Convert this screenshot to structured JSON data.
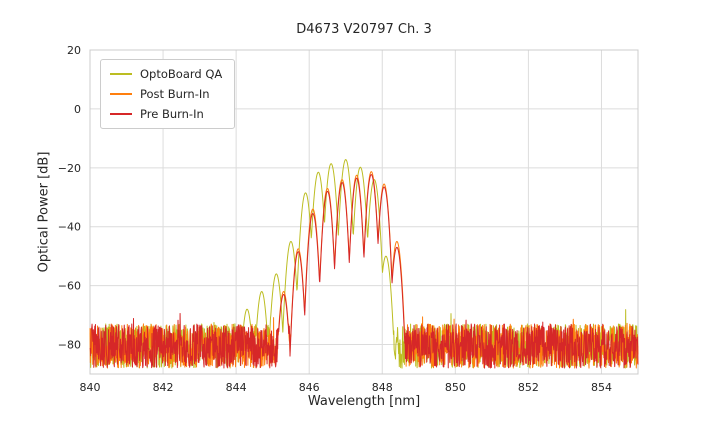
{
  "chart_data": {
    "type": "line",
    "title": "D4673 V20797 Ch. 3",
    "xlabel": "Wavelength [nm]",
    "ylabel": "Optical Power [dB]",
    "xlim": [
      840,
      855
    ],
    "ylim": [
      -90,
      20
    ],
    "xticks": [
      840,
      842,
      844,
      846,
      848,
      850,
      852,
      854
    ],
    "xtick_labels": [
      "840",
      "842",
      "844",
      "846",
      "848",
      "850",
      "852",
      "854"
    ],
    "yticks": [
      20,
      0,
      -20,
      -40,
      -60,
      -80
    ],
    "ytick_labels": [
      "20",
      "0",
      "−20",
      "−40",
      "−60",
      "−80"
    ],
    "grid": true,
    "grid_color": "#dcdcdc",
    "frame_color": "#cccccc",
    "legend_position": "upper-left",
    "series": [
      {
        "name": "OptoBoard QA",
        "color": "#bcbd22",
        "noise_floor_db": [
          -88,
          -73
        ],
        "mode_halfwidth_nm": 0.2,
        "notch_depth_db": 25,
        "modes": [
          [
            844.3,
            -68.0
          ],
          [
            844.7,
            -62.0
          ],
          [
            845.1,
            -56.0
          ],
          [
            845.5,
            -45.0
          ],
          [
            845.9,
            -28.5
          ],
          [
            846.25,
            -21.5
          ],
          [
            846.6,
            -18.6
          ],
          [
            847.0,
            -17.2
          ],
          [
            847.4,
            -19.8
          ],
          [
            847.78,
            -24.0
          ],
          [
            848.1,
            -50.0
          ]
        ]
      },
      {
        "name": "Post Burn-In",
        "color": "#ff7f0e",
        "noise_floor_db": [
          -88,
          -73
        ],
        "mode_halfwidth_nm": 0.2,
        "notch_depth_db": 28,
        "modes": [
          [
            845.3,
            -62.0
          ],
          [
            845.7,
            -47.5
          ],
          [
            846.1,
            -34.0
          ],
          [
            846.5,
            -27.0
          ],
          [
            846.9,
            -24.0
          ],
          [
            847.3,
            -22.5
          ],
          [
            847.7,
            -21.3
          ],
          [
            848.05,
            -25.5
          ],
          [
            848.4,
            -45.0
          ]
        ]
      },
      {
        "name": "Pre Burn-In",
        "color": "#d62728",
        "noise_floor_db": [
          -88,
          -73
        ],
        "mode_halfwidth_nm": 0.2,
        "notch_depth_db": 28,
        "modes": [
          [
            845.3,
            -63.0
          ],
          [
            845.7,
            -48.5
          ],
          [
            846.1,
            -35.5
          ],
          [
            846.5,
            -28.0
          ],
          [
            846.9,
            -25.0
          ],
          [
            847.3,
            -23.5
          ],
          [
            847.7,
            -22.3
          ],
          [
            848.05,
            -26.5
          ],
          [
            848.4,
            -47.0
          ]
        ]
      }
    ]
  }
}
